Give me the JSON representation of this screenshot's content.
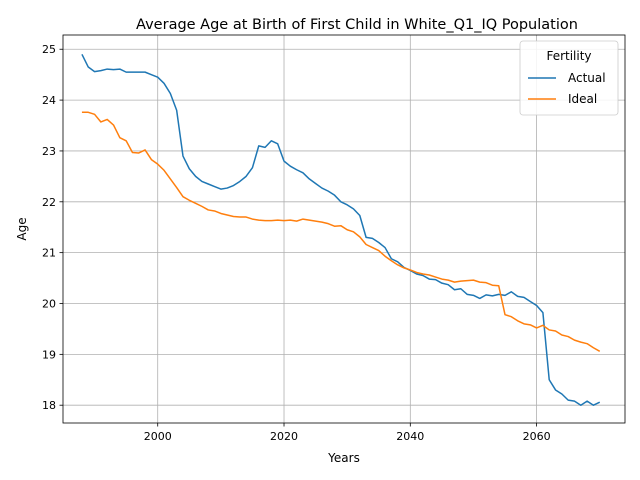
{
  "chart_data": {
    "type": "line",
    "title": "Average Age at Birth of First Child in White_Q1_IQ Population",
    "xlabel": "Years",
    "ylabel": "Age",
    "xlim": [
      1985,
      2074
    ],
    "ylim": [
      17.65,
      25.28
    ],
    "xticks": [
      2000,
      2020,
      2040,
      2060
    ],
    "yticks": [
      18,
      19,
      20,
      21,
      22,
      23,
      24,
      25
    ],
    "grid": true,
    "legend": {
      "title": "Fertility",
      "placement": "top-right"
    },
    "series": [
      {
        "name": "Actual",
        "color": "#1f77b4",
        "x": [
          1988,
          1989,
          1990,
          1991,
          1992,
          1993,
          1994,
          1995,
          1996,
          1997,
          1998,
          1999,
          2000,
          2001,
          2002,
          2003,
          2004,
          2005,
          2006,
          2007,
          2008,
          2009,
          2010,
          2011,
          2012,
          2013,
          2014,
          2015,
          2016,
          2017,
          2018,
          2019,
          2020,
          2021,
          2022,
          2023,
          2024,
          2025,
          2026,
          2027,
          2028,
          2029,
          2030,
          2031,
          2032,
          2033,
          2034,
          2035,
          2036,
          2037,
          2038,
          2039,
          2040,
          2041,
          2042,
          2043,
          2044,
          2045,
          2046,
          2047,
          2048,
          2049,
          2050,
          2051,
          2052,
          2053,
          2054,
          2055,
          2056,
          2057,
          2058,
          2059,
          2060,
          2061,
          2062,
          2063,
          2064,
          2065,
          2066,
          2067,
          2068,
          2069,
          2070
        ],
        "values": [
          24.9,
          24.65,
          24.56,
          24.58,
          24.61,
          24.6,
          24.61,
          24.55,
          24.55,
          24.55,
          24.55,
          24.5,
          24.45,
          24.33,
          24.13,
          23.8,
          22.9,
          22.65,
          22.5,
          22.4,
          22.35,
          22.3,
          22.25,
          22.27,
          22.32,
          22.4,
          22.5,
          22.67,
          23.1,
          23.07,
          23.2,
          23.14,
          22.8,
          22.7,
          22.63,
          22.57,
          22.45,
          22.36,
          22.27,
          22.21,
          22.13,
          22.0,
          21.94,
          21.86,
          21.73,
          21.3,
          21.28,
          21.2,
          21.1,
          20.88,
          20.82,
          20.71,
          20.65,
          20.58,
          20.55,
          20.48,
          20.47,
          20.4,
          20.37,
          20.27,
          20.29,
          20.18,
          20.16,
          20.1,
          20.17,
          20.15,
          20.18,
          20.16,
          20.23,
          20.14,
          20.12,
          20.04,
          19.96,
          19.82,
          18.5,
          18.3,
          18.22,
          18.1,
          18.08,
          18.0,
          18.08,
          18.0,
          18.06
        ]
      },
      {
        "name": "Ideal",
        "color": "#ff7f0e",
        "x": [
          1988,
          1989,
          1990,
          1991,
          1992,
          1993,
          1994,
          1995,
          1996,
          1997,
          1998,
          1999,
          2000,
          2001,
          2002,
          2003,
          2004,
          2005,
          2006,
          2007,
          2008,
          2009,
          2010,
          2011,
          2012,
          2013,
          2014,
          2015,
          2016,
          2017,
          2018,
          2019,
          2020,
          2021,
          2022,
          2023,
          2024,
          2025,
          2026,
          2027,
          2028,
          2029,
          2030,
          2031,
          2032,
          2033,
          2034,
          2035,
          2036,
          2037,
          2038,
          2039,
          2040,
          2041,
          2042,
          2043,
          2044,
          2045,
          2046,
          2047,
          2048,
          2049,
          2050,
          2051,
          2052,
          2053,
          2054,
          2055,
          2056,
          2057,
          2058,
          2059,
          2060,
          2061,
          2062,
          2063,
          2064,
          2065,
          2066,
          2067,
          2068,
          2069,
          2070
        ],
        "values": [
          23.76,
          23.76,
          23.72,
          23.57,
          23.62,
          23.51,
          23.26,
          23.2,
          22.97,
          22.96,
          23.02,
          22.83,
          22.74,
          22.62,
          22.45,
          22.28,
          22.1,
          22.03,
          21.97,
          21.91,
          21.84,
          21.82,
          21.77,
          21.74,
          21.71,
          21.7,
          21.7,
          21.66,
          21.64,
          21.63,
          21.63,
          21.64,
          21.63,
          21.64,
          21.62,
          21.66,
          21.64,
          21.62,
          21.6,
          21.57,
          21.52,
          21.53,
          21.45,
          21.41,
          21.31,
          21.16,
          21.1,
          21.04,
          20.93,
          20.84,
          20.76,
          20.7,
          20.66,
          20.61,
          20.58,
          20.56,
          20.52,
          20.48,
          20.46,
          20.42,
          20.44,
          20.45,
          20.46,
          20.42,
          20.41,
          20.36,
          20.35,
          19.78,
          19.74,
          19.66,
          19.6,
          19.58,
          19.52,
          19.57,
          19.48,
          19.46,
          19.38,
          19.35,
          19.28,
          19.24,
          19.21,
          19.13,
          19.06
        ]
      }
    ]
  }
}
